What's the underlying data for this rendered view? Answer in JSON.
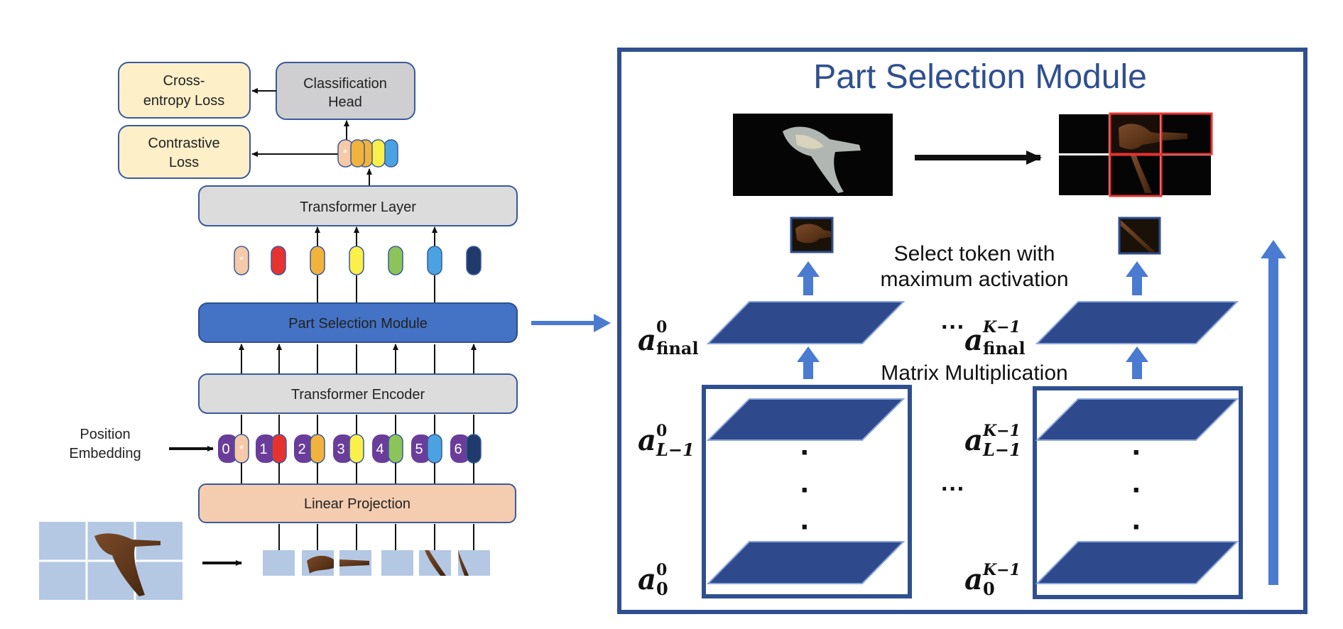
{
  "left_pipeline": {
    "losses": {
      "cross_entropy": [
        "Cross-",
        "entropy Loss"
      ],
      "contrastive": [
        "Contrastive",
        "Loss"
      ]
    },
    "classification_head": [
      "Classification",
      "Head"
    ],
    "transformer_layer": "Transformer Layer",
    "part_selection_module": "Part Selection Module",
    "transformer_encoder": "Transformer Encoder",
    "linear_projection": "Linear Projection",
    "position_embedding": [
      "Position",
      "Embedding"
    ],
    "position_indices": [
      "0",
      "1",
      "2",
      "3",
      "4",
      "5",
      "6"
    ],
    "cls_token_symbol": "*"
  },
  "right_module": {
    "title": "Part Selection Module",
    "select_caption": [
      "Select token with",
      "maximum activation"
    ],
    "matmul_caption": "Matrix Multiplication",
    "ellipsis": "···",
    "vertical_dots": "·",
    "math_labels": {
      "a": "a",
      "final_sub": "final",
      "sup_0": "0",
      "sup_k": "K−1",
      "sub_l": "L−1",
      "sub_0": "0"
    }
  },
  "colors": {
    "module_blue": "#4472c4",
    "frame_blue": "#2f4f8f",
    "plane_blue": "#2e4a8c",
    "arrow_blue": "#4a7bd0",
    "loss_fill": "#fdefc8",
    "gray_box": "#dcdcdc",
    "proj_fill": "#f4ccb0",
    "purple": "#6a3d9a",
    "token_colors": [
      "#f6c9a8",
      "#e8322f",
      "#f2b33c",
      "#fbef4a",
      "#8cc45a",
      "#4aa3e0",
      "#1f3a6b"
    ]
  }
}
